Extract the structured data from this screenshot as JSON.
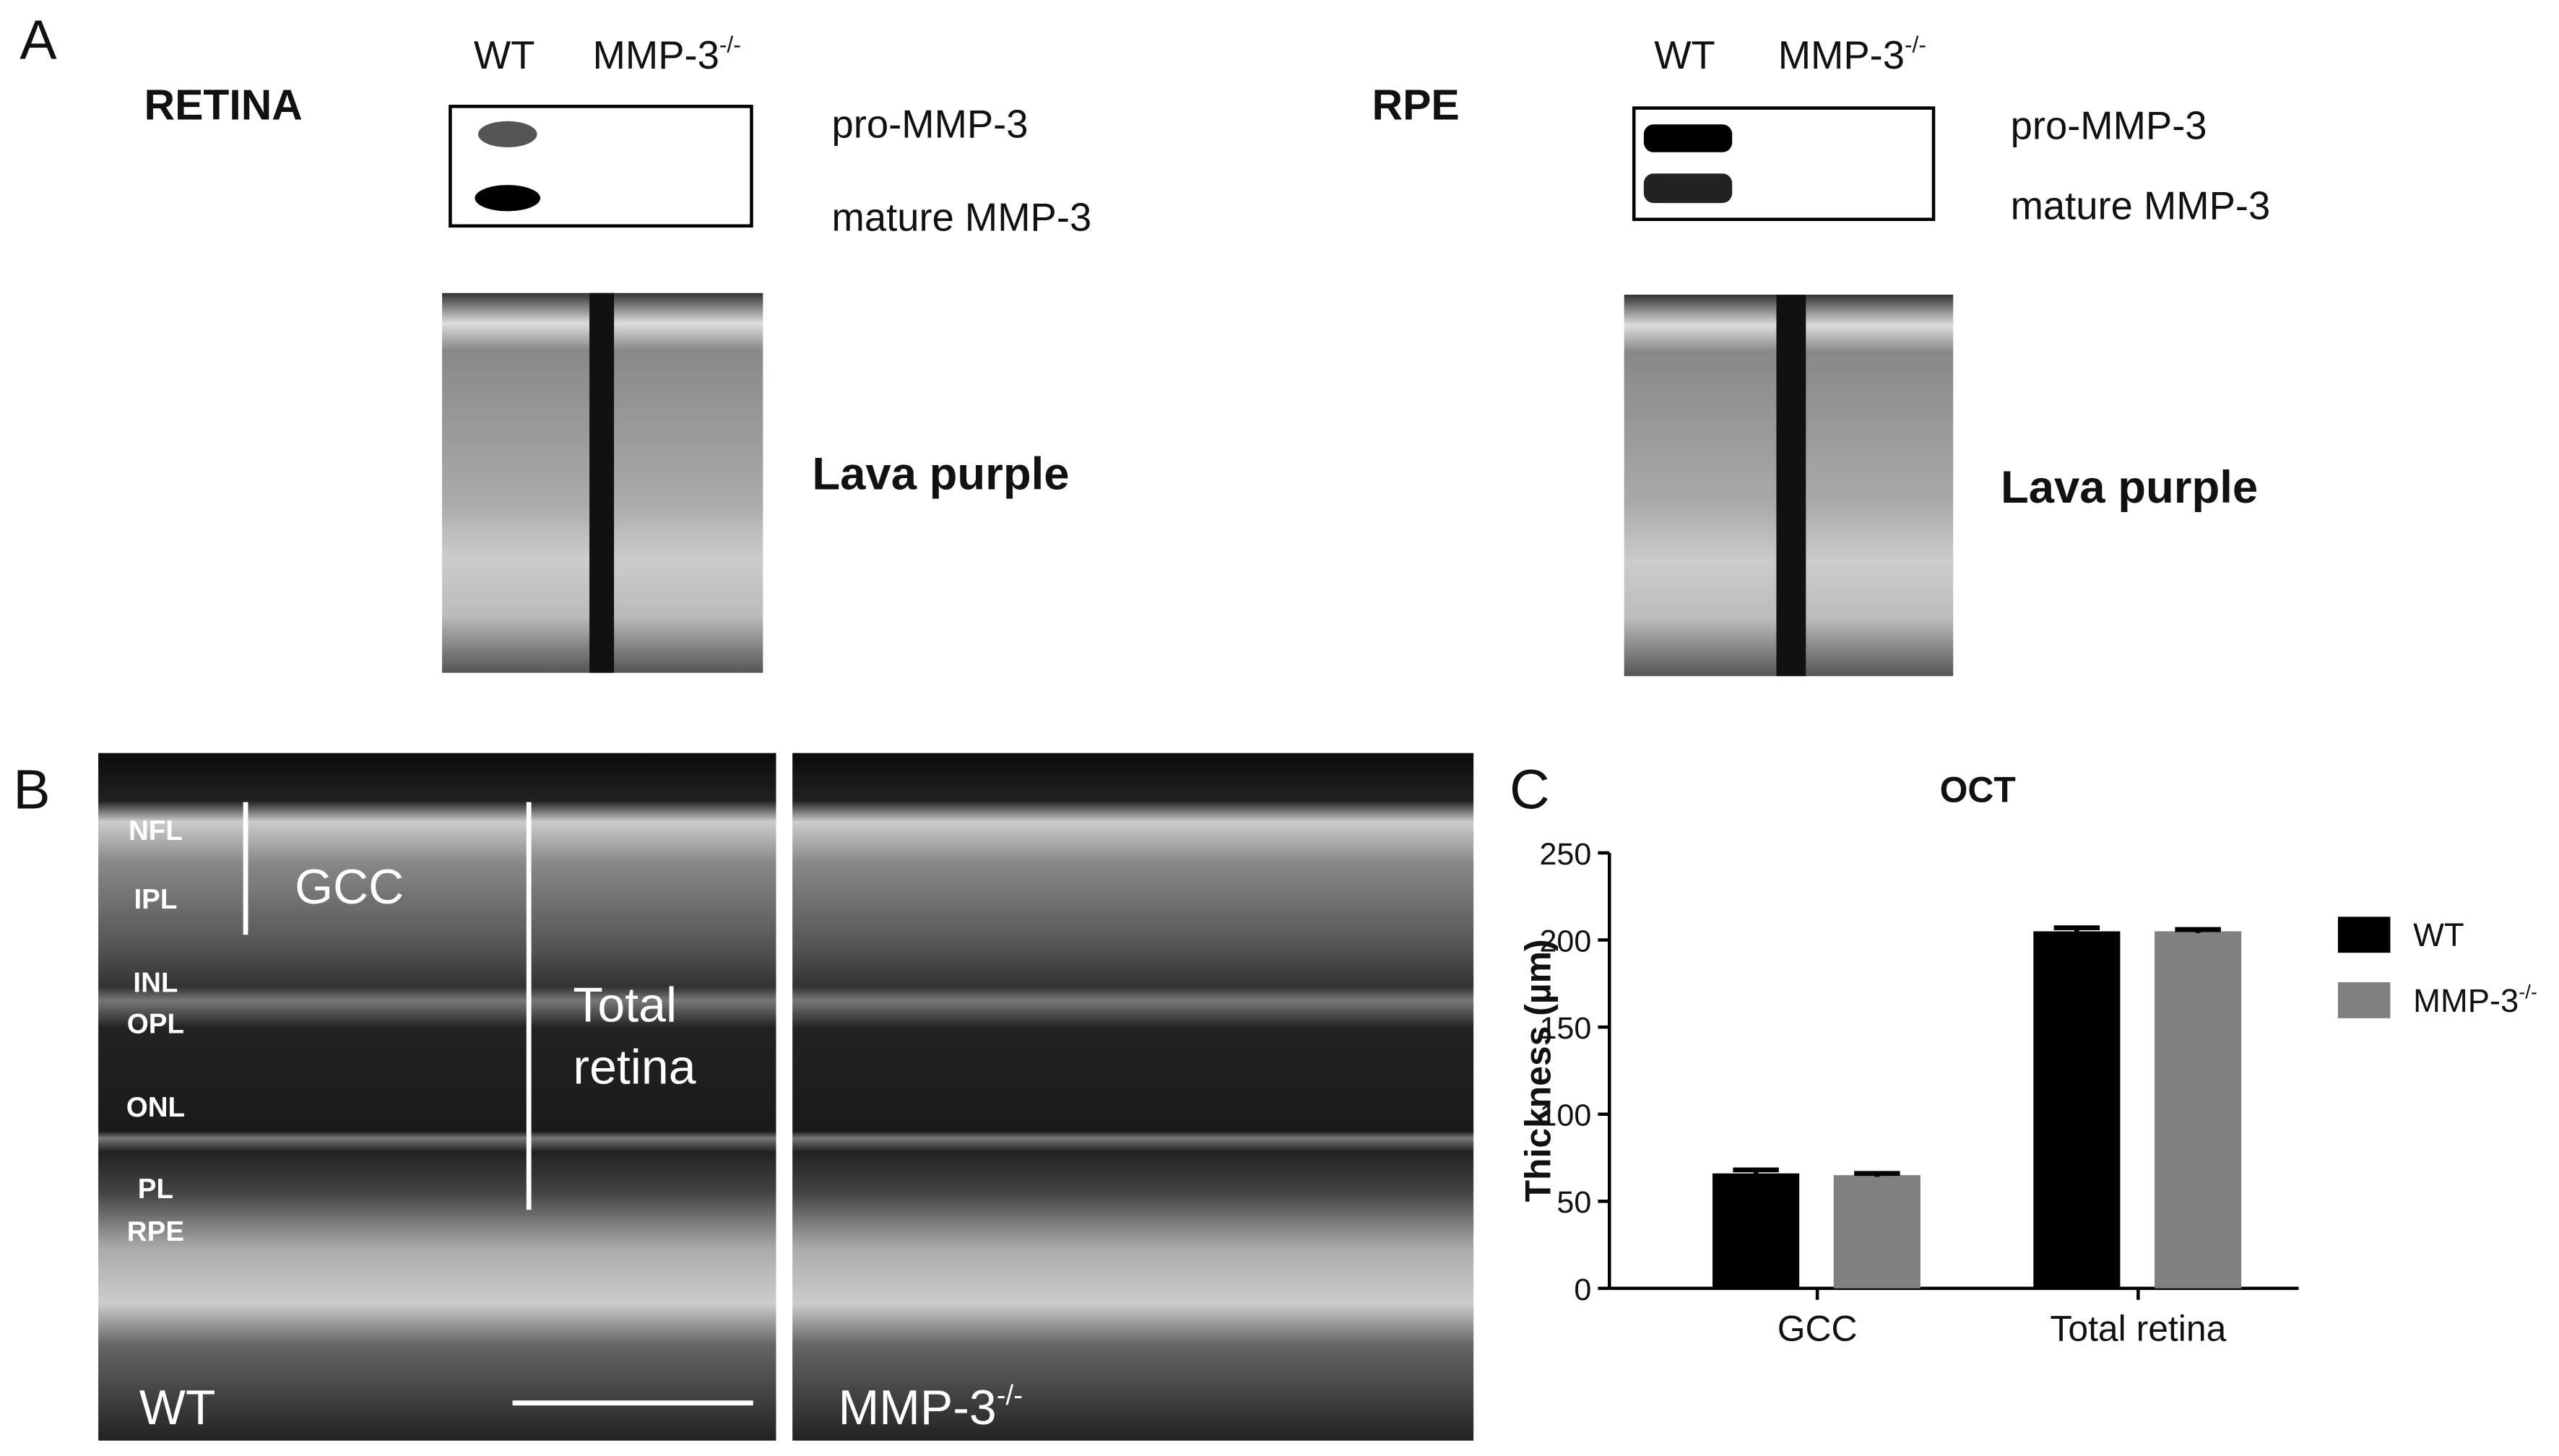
{
  "panel_a": {
    "letter": "A",
    "retina": {
      "title": "RETINA",
      "lane_wt": "WT",
      "lane_ko": {
        "base": "MMP-3",
        "sup": "-/-"
      },
      "band_pro": "pro-MMP-3",
      "band_mature": "mature MMP-3",
      "loading": "Lava purple"
    },
    "rpe": {
      "title": "RPE",
      "lane_wt": "WT",
      "lane_ko": {
        "base": "MMP-3",
        "sup": "-/-"
      },
      "band_pro": "pro-MMP-3",
      "band_mature": "mature MMP-3",
      "loading": "Lava purple"
    }
  },
  "panel_b": {
    "letter": "B",
    "layers": [
      "NFL",
      "IPL",
      "INL",
      "OPL",
      "ONL",
      "PL",
      "RPE"
    ],
    "gcc": "GCC",
    "total": [
      "Total",
      "retina"
    ],
    "wt": "WT",
    "ko": {
      "base": "MMP-3",
      "sup": "-/-"
    }
  },
  "panel_c": {
    "letter": "C"
  },
  "chart_data": {
    "type": "bar",
    "title": "OCT",
    "ylabel": "Thickness (µm)",
    "categories": [
      "GCC",
      "Total retina"
    ],
    "series": [
      {
        "name": "WT",
        "color": "#000000",
        "values": [
          66,
          205
        ],
        "errors": [
          2,
          2
        ]
      },
      {
        "name": "MMP-3",
        "name_sup": "-/-",
        "color": "#808080",
        "values": [
          65,
          205
        ],
        "errors": [
          1,
          1
        ]
      }
    ],
    "ylim": [
      0,
      250
    ],
    "yticks": [
      0,
      50,
      100,
      150,
      200,
      250
    ]
  }
}
